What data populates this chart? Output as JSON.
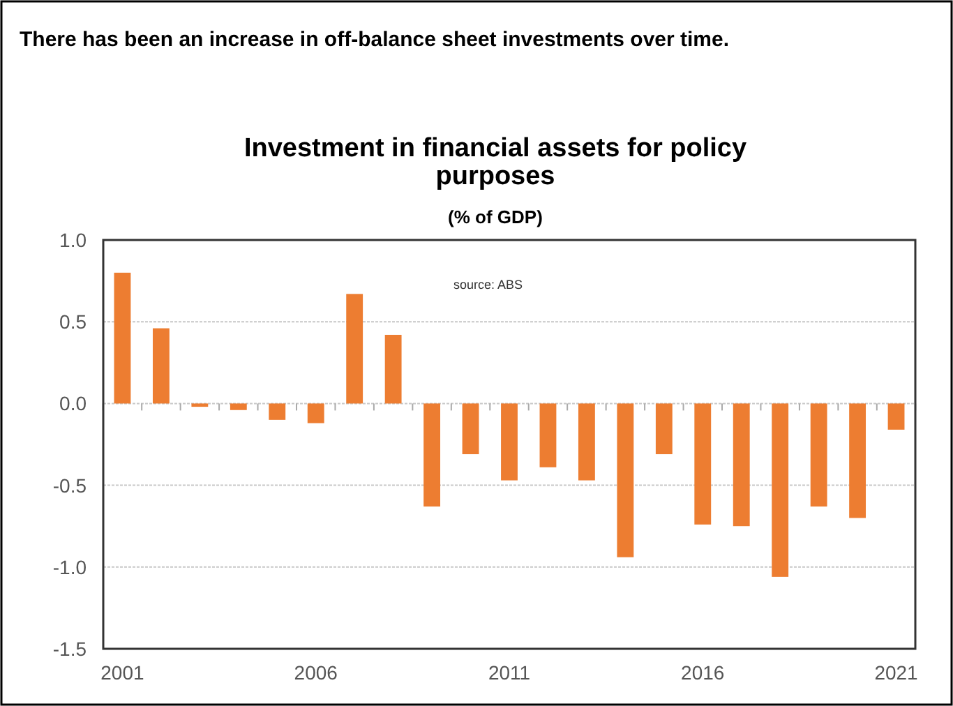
{
  "chart_data": {
    "type": "bar",
    "title": "Investment in financial assets for policy purposes",
    "subtitle": "(% of GDP)",
    "annotations": [
      "There has been an increase in off-balance sheet investments over time.",
      "source:  ABS"
    ],
    "categories": [
      "2001",
      null,
      null,
      null,
      null,
      "2006",
      null,
      null,
      null,
      null,
      "2011",
      null,
      null,
      null,
      null,
      "2016",
      null,
      null,
      null,
      null,
      "2021"
    ],
    "values": [
      0.8,
      0.46,
      -0.02,
      -0.04,
      -0.1,
      -0.12,
      0.67,
      0.42,
      -0.63,
      -0.31,
      -0.47,
      -0.39,
      -0.47,
      -0.94,
      -0.31,
      -0.74,
      -0.75,
      -1.06,
      -0.63,
      -0.7,
      -0.16
    ],
    "color": "#ed7d31",
    "ylim": [
      -1.5,
      1.0
    ],
    "yticks": [
      {
        "value": -1.5,
        "label": "-1.5"
      },
      {
        "value": -1,
        "label": "-1.0"
      },
      {
        "value": -0.5,
        "label": "-0.5"
      },
      {
        "value": 0,
        "label": "0.0"
      },
      {
        "value": 0.5,
        "label": "0.5"
      },
      {
        "value": 1,
        "label": "1.0"
      }
    ],
    "grid": "y"
  }
}
